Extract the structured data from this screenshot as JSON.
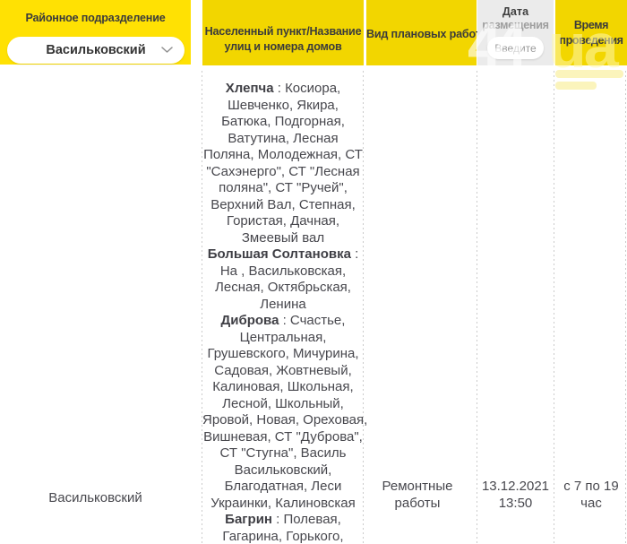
{
  "colors": {
    "filter_yellow": "#ffe103",
    "header_yellow": "#f2d600",
    "date_header_grey": "#ebebeb",
    "header_text": "#3b3b3b",
    "muted_text": "#9e9e9e",
    "body_text": "#47474d",
    "divider": "#cccccc"
  },
  "header": {
    "district": {
      "title": "Районное подразделение",
      "selected": "Васильковский"
    },
    "settlement": {
      "title_line1": "Населенный пункт/Название",
      "title_line2": "улиц и номера домов"
    },
    "work": {
      "title": "Вид плановых работ"
    },
    "date": {
      "title_line1": "Дата",
      "title_line2": "размещения",
      "placeholder": "Введите"
    },
    "time": {
      "title_line1": "Время",
      "title_line2": "проведения"
    }
  },
  "watermark": {
    "big": "44",
    "small": "ua"
  },
  "row": {
    "district": "Васильковский",
    "work_type": "Ремонтные работы",
    "posted": "13.12.2021 13:50",
    "time_range": "с 7 по 19 час",
    "streets": [
      "**Хлепча** : Косиора,",
      "Шевченко, Якира,",
      "Батюка, Подгорная,",
      "Ватутина, Лесная",
      "Поляна, Молодежная, СТ",
      "\"Сахэнерго\", СТ \"Лесная",
      "поляна\", СТ \"Ручей\",",
      "Верхний Вал, Степная,",
      "Гористая, Дачная,",
      "Змеевый вал",
      "**Большая Солтановка** :",
      "На , Васильковская,",
      "Лесная, Октябрьская,",
      "Ленина",
      "**Диброва** : Счастье,",
      "Центральная,",
      "Грушевского, Мичурина,",
      "Садовая, Жовтневый,",
      "Калиновая, Школьная,",
      "Лесной, Школьный,",
      "Яровой, Новая, Ореховая,",
      "Вишневая, СТ \"Дуброва\",",
      "СТ \"Стугна\", Василь",
      "Васильковский,",
      "Благодатная, Леси",
      "Украинки, Калиновская",
      "**Багрин** : Полевая,",
      "Гагарина, Горького,"
    ]
  }
}
